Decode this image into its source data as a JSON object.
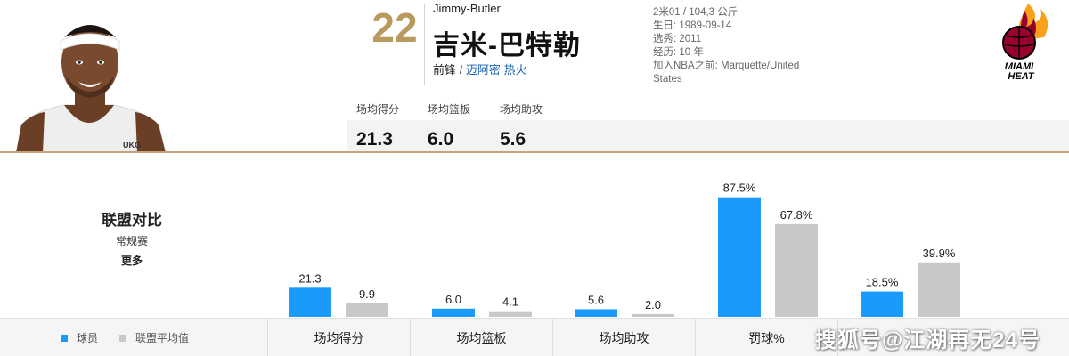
{
  "player": {
    "number": "22",
    "name_en": "Jimmy-Butler",
    "name_cn": "吉米-巴特勒",
    "position": "前锋",
    "separator": "/",
    "team": "迈阿密 热火",
    "bio": [
      "2米01 / 104,3 公斤",
      "生日: 1989-09-14",
      "选秀: 2011",
      "经历: 10 年",
      "加入NBA之前: Marquette/United States"
    ],
    "jersey_text": "UKG"
  },
  "team_logo": {
    "line1": "MIAMI",
    "line2": "HEAT",
    "colors": {
      "red": "#98002e",
      "flame": "#f9a01b",
      "black": "#000000"
    }
  },
  "averages": [
    {
      "label": "场均得分",
      "value": "21.3"
    },
    {
      "label": "场均篮板",
      "value": "6.0"
    },
    {
      "label": "场均助攻",
      "value": "5.6"
    }
  ],
  "comparison": {
    "title": "联盟对比",
    "subtitle": "常规赛",
    "more": "更多"
  },
  "chart_data": {
    "type": "bar",
    "categories": [
      "场均得分",
      "场均篮板",
      "场均助攻",
      "罚球%"
    ],
    "series": [
      {
        "name": "球员",
        "values": [
          21.3,
          6.0,
          5.6,
          87.5
        ],
        "labels": [
          "21.3",
          "6.0",
          "5.6",
          "87.5%"
        ],
        "color": "#1a9bfc"
      },
      {
        "name": "联盟平均值",
        "values": [
          9.9,
          4.1,
          2.0,
          67.8
        ],
        "labels": [
          "9.9",
          "4.1",
          "2.0",
          "67.8%"
        ],
        "color": "#c8c8c8"
      }
    ],
    "extra_category": {
      "name": "",
      "values": [
        18.5,
        39.9
      ],
      "labels": [
        "18.5%",
        "39.9%"
      ]
    }
  },
  "watermark": "搜狐号@江湖再无24号"
}
